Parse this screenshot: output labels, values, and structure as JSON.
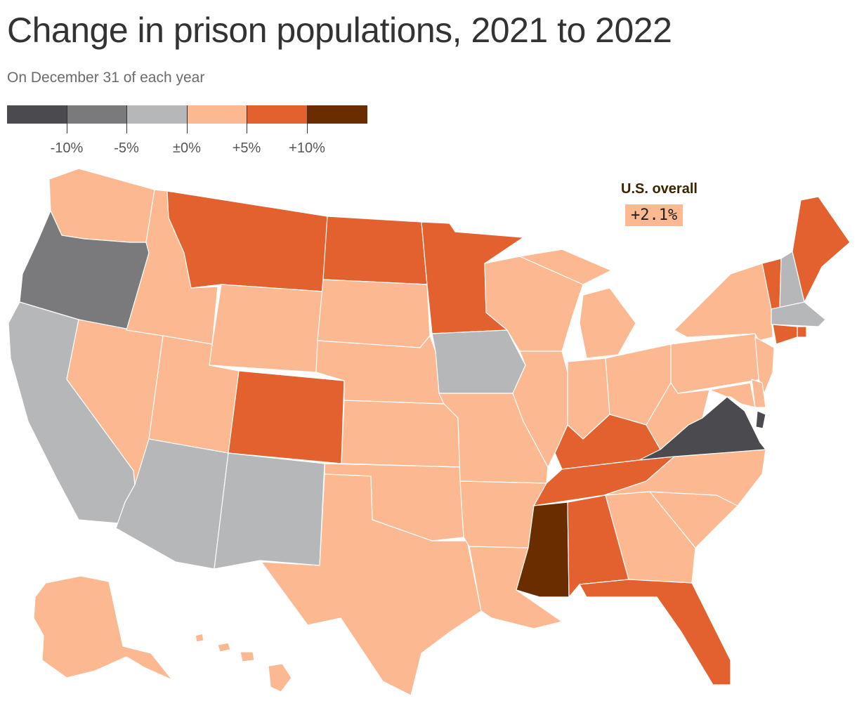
{
  "title": "Change in prison populations, 2021 to 2022",
  "subtitle": "On December 31 of each year",
  "legend": {
    "colors": [
      "#4a4a4f",
      "#7a7a7d",
      "#b6b7b9",
      "#fbb891",
      "#e2612e",
      "#6a2d00"
    ],
    "ticks": [
      "-10%",
      "-5%",
      "±0%",
      "+5%",
      "+10%"
    ]
  },
  "overall": {
    "label": "U.S. overall",
    "value": "+2.1%"
  },
  "map_data": {
    "bins": {
      "lt_minus10": "#4a4a4f",
      "minus10_to_minus5": "#7a7a7d",
      "minus5_to_0": "#b6b7b9",
      "0_to_5": "#fbb891",
      "5_to_10": "#e2612e",
      "gt_10": "#6a2d00"
    },
    "states": {
      "WA": "0_to_5",
      "OR": "minus10_to_minus5",
      "CA": "minus5_to_0",
      "NV": "0_to_5",
      "ID": "0_to_5",
      "MT": "5_to_10",
      "WY": "0_to_5",
      "UT": "0_to_5",
      "CO": "5_to_10",
      "AZ": "minus5_to_0",
      "NM": "minus5_to_0",
      "ND": "5_to_10",
      "SD": "0_to_5",
      "NE": "0_to_5",
      "KS": "0_to_5",
      "OK": "0_to_5",
      "TX": "0_to_5",
      "MN": "5_to_10",
      "IA": "minus5_to_0",
      "MO": "0_to_5",
      "AR": "0_to_5",
      "LA": "0_to_5",
      "WI": "0_to_5",
      "IL": "0_to_5",
      "MI": "0_to_5",
      "IN": "0_to_5",
      "OH": "0_to_5",
      "KY": "5_to_10",
      "TN": "5_to_10",
      "MS": "gt_10",
      "AL": "5_to_10",
      "GA": "0_to_5",
      "FL": "5_to_10",
      "SC": "0_to_5",
      "NC": "0_to_5",
      "VA": "lt_minus10",
      "WV": "0_to_5",
      "PA": "0_to_5",
      "NY": "0_to_5",
      "VT": "5_to_10",
      "NH": "minus5_to_0",
      "ME": "5_to_10",
      "MA": "minus5_to_0",
      "RI": "5_to_10",
      "CT": "5_to_10",
      "NJ": "0_to_5",
      "DE": "0_to_5",
      "MD": "0_to_5",
      "DC": "lt_minus10",
      "AK": "0_to_5",
      "HI": "0_to_5"
    }
  }
}
